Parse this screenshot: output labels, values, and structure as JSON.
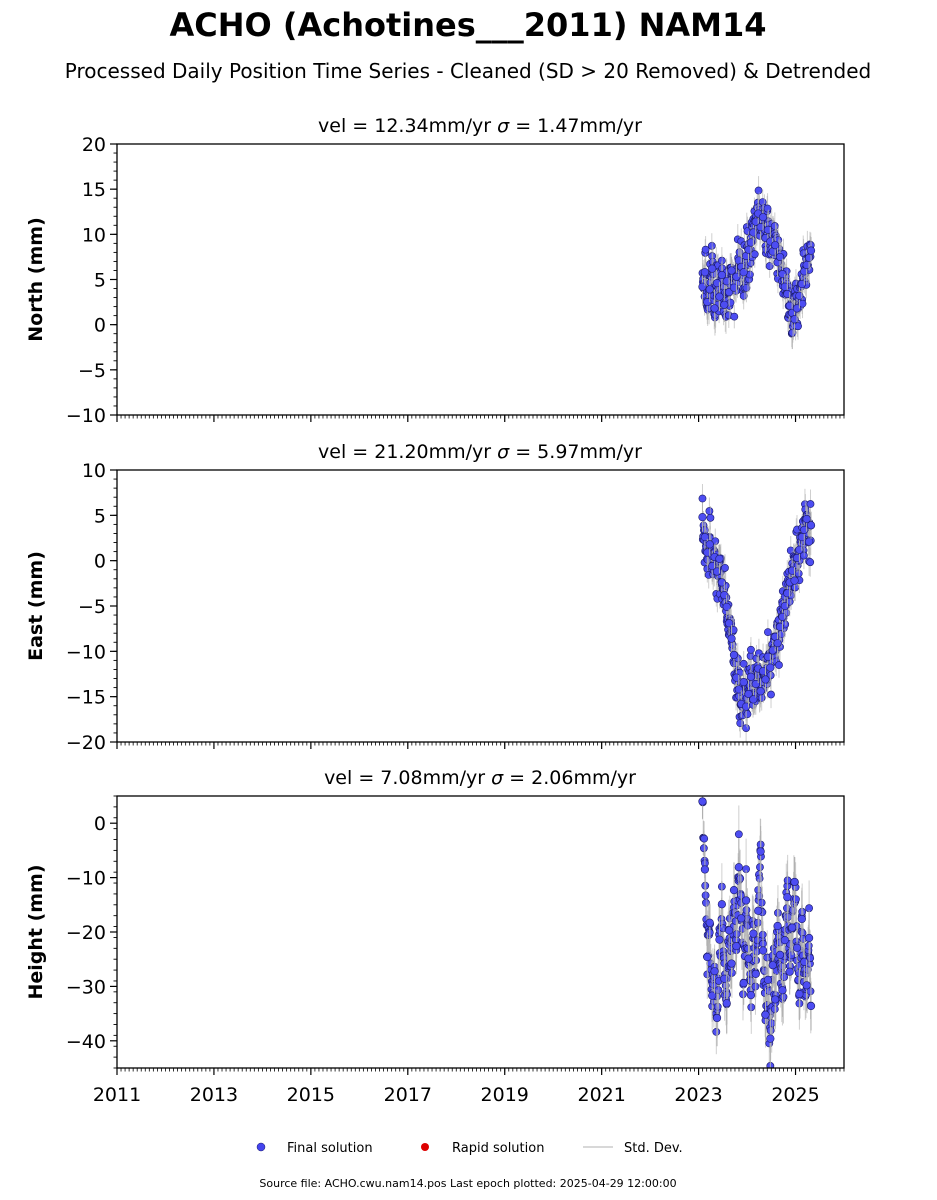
{
  "title": "ACHO (Achotines___2011) NAM14",
  "subtitle": "Processed Daily Position Time Series - Cleaned (SD > 20 Removed) & Detrended",
  "footer": "Source file: ACHO.cwu.nam14.pos  Last epoch plotted: 2025-04-29 12:00:00",
  "legend": {
    "placement": "bottom-center",
    "items": [
      {
        "label": "Final solution",
        "color": "#4444ee"
      },
      {
        "label": "Rapid solution",
        "color": "#dd0000"
      },
      {
        "label": "Std. Dev.",
        "color": "#cccccc"
      }
    ]
  },
  "colors": {
    "final": "#4d4df2",
    "marker_edge": "#1a1a66",
    "errorbar": "#b0b0b0"
  },
  "chart_data": [
    {
      "type": "scatter",
      "id": "north",
      "title_prefix": "vel = 12.34mm/yr",
      "title_suffix": "= 1.47mm/yr",
      "ylabel": "North (mm)",
      "ylim": [
        -10,
        20
      ],
      "yticks": [
        -10,
        -5,
        0,
        5,
        10,
        15,
        20
      ],
      "ytick_labels": [
        "−10",
        "−5",
        "0",
        "5",
        "10",
        "15",
        "20"
      ],
      "xlim": [
        2011,
        2026
      ],
      "xticks": [
        2011,
        2013,
        2015,
        2017,
        2019,
        2021,
        2023,
        2025
      ],
      "xtick_labels": [],
      "series": [
        {
          "x": [
            2023.08,
            2023.13,
            2023.18,
            2023.23,
            2023.28,
            2023.33,
            2023.38,
            2023.43,
            2023.48,
            2023.53,
            2023.58,
            2023.63,
            2023.68,
            2023.73,
            2023.78,
            2023.83,
            2023.88,
            2023.93,
            2023.98,
            2024.03,
            2024.08,
            2024.13,
            2024.18,
            2024.23,
            2024.28,
            2024.33,
            2024.38,
            2024.43,
            2024.48,
            2024.53,
            2024.58,
            2024.63,
            2024.68,
            2024.73,
            2024.78,
            2024.83,
            2024.88,
            2024.93,
            2024.98,
            2025.03,
            2025.08,
            2025.13,
            2025.18,
            2025.23,
            2025.28,
            2025.32
          ],
          "y": [
            4.2,
            5.8,
            2.5,
            3.9,
            6.2,
            1.8,
            4.6,
            3.1,
            5.5,
            2.2,
            4.8,
            3.6,
            6.0,
            4.1,
            5.3,
            7.1,
            6.4,
            5.8,
            7.6,
            8.3,
            9.1,
            10.2,
            11.4,
            12.3,
            10.8,
            11.9,
            9.6,
            10.5,
            9.2,
            8.1,
            8.8,
            6.9,
            7.5,
            5.6,
            4.2,
            3.4,
            2.1,
            1.3,
            0.6,
            1.8,
            3.2,
            4.5,
            5.9,
            6.6,
            7.4,
            8.2
          ],
          "err": [
            2.1,
            1.5,
            1.8,
            1.4,
            1.7,
            2.0,
            1.3,
            1.6,
            1.5,
            1.9,
            1.4,
            1.6,
            1.5,
            1.3,
            1.7,
            1.8,
            1.4,
            1.5,
            1.6,
            1.4,
            1.7,
            1.5,
            1.8,
            1.6,
            1.4,
            1.5,
            1.7,
            1.3,
            1.6,
            1.5,
            1.4,
            1.6,
            1.5,
            1.7,
            1.4,
            1.6,
            1.5,
            1.8,
            1.6,
            1.5,
            1.4,
            1.6,
            1.5,
            1.7,
            1.4,
            1.5
          ]
        }
      ]
    },
    {
      "type": "scatter",
      "id": "east",
      "title_prefix": "vel = 21.20mm/yr",
      "title_suffix": "= 5.97mm/yr",
      "ylabel": "East (mm)",
      "ylim": [
        -20,
        10
      ],
      "yticks": [
        -20,
        -15,
        -10,
        -5,
        0,
        5,
        10
      ],
      "ytick_labels": [
        "−20",
        "−15",
        "−10",
        "−5",
        "0",
        "5",
        "10"
      ],
      "xlim": [
        2011,
        2026
      ],
      "xticks": [
        2011,
        2013,
        2015,
        2017,
        2019,
        2021,
        2023,
        2025
      ],
      "xtick_labels": [],
      "series": [
        {
          "x": [
            2023.08,
            2023.13,
            2023.18,
            2023.23,
            2023.28,
            2023.33,
            2023.38,
            2023.43,
            2023.48,
            2023.53,
            2023.58,
            2023.63,
            2023.68,
            2023.73,
            2023.78,
            2023.83,
            2023.88,
            2023.93,
            2023.98,
            2024.03,
            2024.08,
            2024.13,
            2024.18,
            2024.23,
            2024.28,
            2024.33,
            2024.38,
            2024.43,
            2024.48,
            2024.53,
            2024.58,
            2024.63,
            2024.68,
            2024.73,
            2024.78,
            2024.83,
            2024.88,
            2024.93,
            2024.98,
            2025.03,
            2025.08,
            2025.13,
            2025.18,
            2025.23,
            2025.28,
            2025.32
          ],
          "y": [
            4.8,
            2.6,
            0.9,
            1.8,
            -0.6,
            0.4,
            -1.2,
            0.2,
            -2.4,
            -3.8,
            -5.1,
            -6.9,
            -8.6,
            -10.4,
            -12.9,
            -14.2,
            -15.8,
            -13.4,
            -16.1,
            -14.7,
            -12.8,
            -15.3,
            -13.6,
            -11.9,
            -14.4,
            -12.2,
            -13.1,
            -10.6,
            -11.8,
            -9.9,
            -8.4,
            -9.1,
            -7.3,
            -6.2,
            -5.0,
            -3.6,
            -2.4,
            -1.1,
            -2.2,
            0.3,
            1.2,
            2.6,
            3.4,
            4.6,
            2.1,
            3.9
          ],
          "err": [
            1.6,
            1.4,
            1.5,
            1.3,
            1.7,
            1.4,
            1.5,
            1.6,
            1.4,
            1.5,
            1.3,
            1.6,
            1.5,
            1.4,
            1.7,
            1.6,
            1.5,
            1.4,
            1.6,
            1.5,
            1.4,
            1.7,
            1.5,
            1.6,
            1.4,
            1.5,
            1.6,
            1.4,
            1.5,
            1.3,
            1.6,
            1.4,
            1.5,
            1.7,
            1.4,
            1.5,
            1.6,
            1.4,
            1.5,
            1.6,
            1.4,
            1.5,
            1.7,
            1.4,
            1.6,
            1.5
          ]
        }
      ]
    },
    {
      "type": "scatter",
      "id": "height",
      "title_prefix": "vel = 7.08mm/yr",
      "title_suffix": "= 2.06mm/yr",
      "ylabel": "Height (mm)",
      "ylim": [
        -45,
        5
      ],
      "yticks": [
        -40,
        -30,
        -20,
        -10,
        0
      ],
      "ytick_labels": [
        "−40",
        "−30",
        "−20",
        "−10",
        "0"
      ],
      "xlim": [
        2011,
        2026
      ],
      "xticks": [
        2011,
        2013,
        2015,
        2017,
        2019,
        2021,
        2023,
        2025
      ],
      "xtick_labels": [
        "2011",
        "2013",
        "2015",
        "2017",
        "2019",
        "2021",
        "2023",
        "2025"
      ],
      "series": [
        {
          "x": [
            2023.08,
            2023.13,
            2023.18,
            2023.23,
            2023.28,
            2023.33,
            2023.38,
            2023.43,
            2023.48,
            2023.53,
            2023.58,
            2023.63,
            2023.68,
            2023.73,
            2023.78,
            2023.83,
            2023.88,
            2023.93,
            2023.98,
            2024.03,
            2024.08,
            2024.13,
            2024.18,
            2024.23,
            2024.28,
            2024.33,
            2024.38,
            2024.43,
            2024.48,
            2024.53,
            2024.58,
            2024.63,
            2024.68,
            2024.73,
            2024.78,
            2024.83,
            2024.88,
            2024.93,
            2024.98,
            2025.03,
            2025.08,
            2025.13,
            2025.18,
            2025.23,
            2025.28,
            2025.32
          ],
          "y": [
            4.0,
            -8.5,
            -24.6,
            -18.3,
            -31.7,
            -27.2,
            -35.8,
            -21.4,
            -14.9,
            -28.6,
            -33.1,
            -19.7,
            -25.8,
            -12.3,
            -22.6,
            -8.1,
            -17.5,
            -29.4,
            -14.2,
            -24.9,
            -31.6,
            -20.3,
            -27.7,
            -16.1,
            -5.2,
            -23.4,
            -35.2,
            -28.8,
            -39.6,
            -26.1,
            -32.4,
            -18.9,
            -24.2,
            -30.7,
            -21.5,
            -13.6,
            -27.3,
            -19.2,
            -10.8,
            -22.9,
            -31.4,
            -17.6,
            -25.5,
            -29.8,
            -21.1,
            -33.6
          ],
          "err": [
            3.2,
            3.8,
            4.5,
            3.6,
            4.8,
            4.1,
            5.2,
            3.9,
            4.3,
            4.7,
            5.5,
            4.2,
            4.6,
            5.1,
            4.4,
            5.3,
            4.8,
            4.0,
            5.6,
            4.5,
            4.9,
            5.2,
            4.3,
            5.8,
            4.7,
            4.1,
            5.0,
            4.6,
            5.4,
            4.2,
            4.8,
            5.1,
            4.4,
            4.9,
            5.3,
            4.7,
            4.2,
            5.0,
            4.6,
            4.4,
            4.8,
            5.2,
            4.3,
            4.7,
            5.1,
            4.5
          ]
        }
      ]
    }
  ]
}
